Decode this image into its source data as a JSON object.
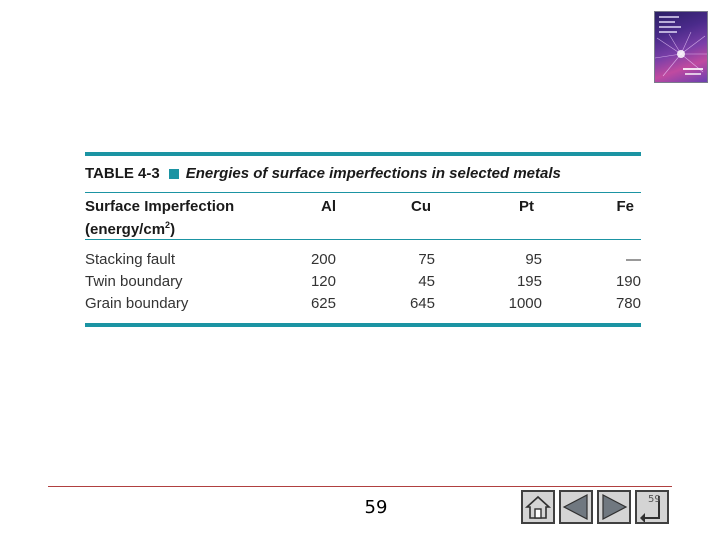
{
  "table": {
    "number": "TABLE 4-3",
    "title": "Energies of surface imperfections in selected metals",
    "header": {
      "first_line1": "Surface Imperfection",
      "first_line2_pre": "(energy/cm",
      "first_line2_sup": "2",
      "first_line2_post": ")",
      "columns": [
        "Al",
        "Cu",
        "Pt",
        "Fe"
      ]
    },
    "rows": [
      {
        "label": "Stacking fault",
        "values": [
          "200",
          "75",
          "95",
          "—"
        ]
      },
      {
        "label": "Twin boundary",
        "values": [
          "120",
          "45",
          "195",
          "190"
        ]
      },
      {
        "label": "Grain boundary",
        "values": [
          "625",
          "645",
          "1000",
          "780"
        ]
      }
    ]
  },
  "footer": {
    "page_number": "59",
    "small_page_number": "59"
  },
  "icons": {
    "home": "home-icon",
    "previous": "previous-slide-icon",
    "next": "next-slide-icon",
    "book": "book-cover-image"
  },
  "colors": {
    "accent": "#1b94a3",
    "footer_rule": "#b04040"
  }
}
